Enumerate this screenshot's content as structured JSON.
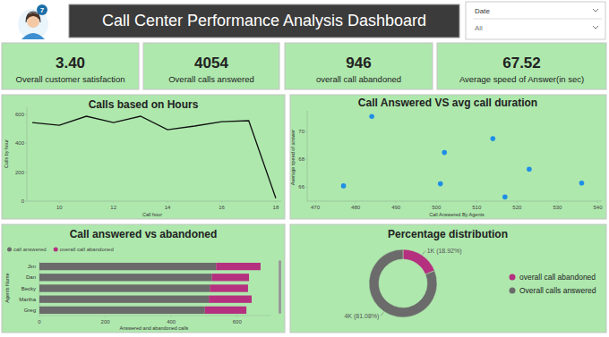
{
  "title": "Call Center Performance Analysis Dashboard",
  "icon_badge": "7",
  "slicer": {
    "label": "Date",
    "value": "All"
  },
  "kpis": [
    {
      "value": "3.40",
      "label": "Overall customer satisfaction"
    },
    {
      "value": "4054",
      "label": "Overall calls answered"
    },
    {
      "value": "946",
      "label": "overall call abandoned"
    },
    {
      "value": "67.52",
      "label": "Average speed of Answer(in sec)"
    }
  ],
  "chart_data": [
    {
      "type": "line",
      "title": "Calls based on Hours",
      "x_label": "Call hour",
      "y_label": "Calls by hour",
      "x": [
        9,
        10,
        11,
        12,
        13,
        14,
        15,
        16,
        17,
        18
      ],
      "values": [
        544,
        526,
        588,
        544,
        588,
        495,
        520,
        550,
        557,
        20
      ],
      "color": "#111111",
      "xlim": [
        8.8,
        18.2
      ],
      "ylim": [
        0,
        650
      ],
      "xticks": [
        10,
        12,
        14,
        16,
        18
      ],
      "yticks": [
        0,
        200,
        400,
        600
      ],
      "grid": false
    },
    {
      "type": "scatter",
      "title": "Call Answered VS avg call duration",
      "x_label": "Call Answered By Agents",
      "y_label": "Average speed of answer",
      "x": [
        484,
        477,
        502,
        501,
        514,
        517,
        523,
        536
      ],
      "values": [
        71.1,
        66.1,
        68.5,
        66.25,
        69.5,
        65.3,
        67.3,
        66.3
      ],
      "color": "#1f8fe6",
      "marker": "circle",
      "xlim": [
        468,
        541
      ],
      "ylim": [
        65,
        71.5
      ],
      "xticks": [
        470,
        480,
        490,
        500,
        510,
        520,
        530,
        540
      ],
      "yticks": [
        66,
        68,
        70
      ],
      "grid": false
    },
    {
      "type": "bar",
      "orientation": "horizontal",
      "stacked": true,
      "title": "Call answered vs abandoned",
      "x_label": "Answered and abandoned calls",
      "y_label": "Agents Name",
      "categories": [
        "Jim",
        "Dan",
        "Becky",
        "Martha",
        "Greg"
      ],
      "series": [
        {
          "name": "call answered",
          "color": "#6b6b6b",
          "values": [
            536,
            523,
            517,
            514,
            502
          ]
        },
        {
          "name": "overall call abandoned",
          "color": "#b5307f",
          "values": [
            135,
            113,
            116,
            130,
            126
          ]
        }
      ],
      "xlim": [
        0,
        700
      ],
      "xticks": [
        0,
        200,
        400,
        600
      ],
      "legend": "top",
      "grid": false
    },
    {
      "type": "donut",
      "title": "Percentage distribution",
      "categories": [
        "overall call abandoned",
        "Overall calls answered"
      ],
      "values": [
        946,
        4054
      ],
      "value_labels": [
        "1K (18.92%)",
        "4K (81.08%)"
      ],
      "colors": [
        "#b5307f",
        "#6b6b6b"
      ],
      "data_labels": true,
      "legend": "right"
    }
  ]
}
